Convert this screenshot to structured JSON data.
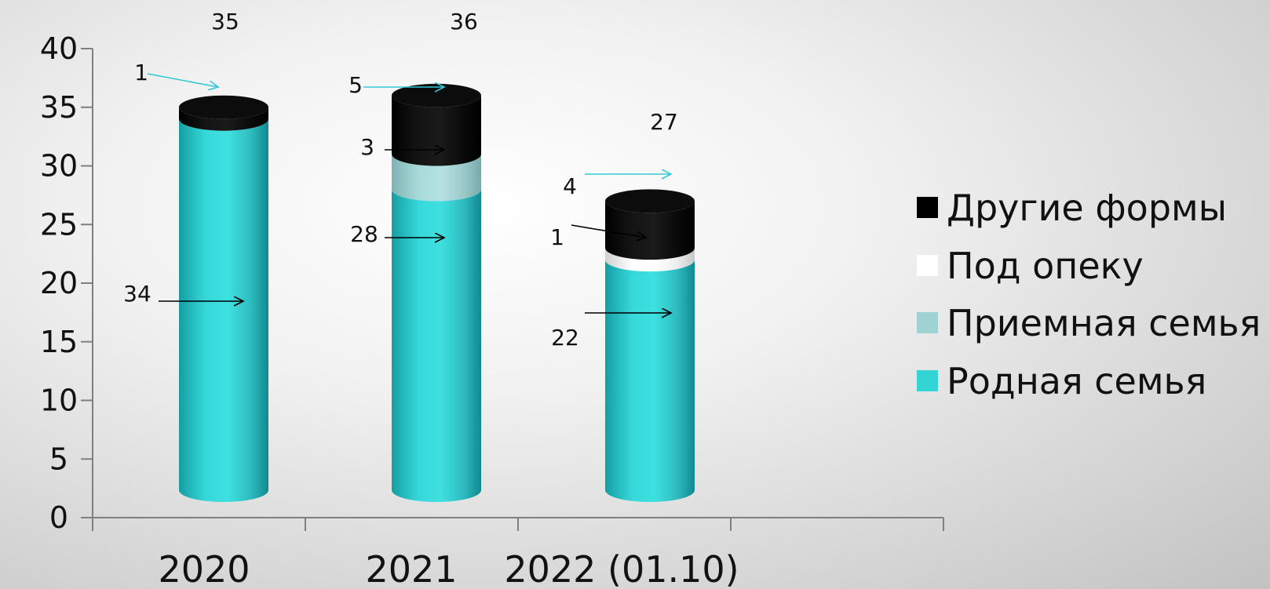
{
  "chart_data": {
    "type": "bar",
    "stacked": true,
    "style": "3d-cylinder",
    "categories": [
      "2020",
      "2021",
      "2022 (01.10)"
    ],
    "series": [
      {
        "name": "Родная семья",
        "values": [
          34,
          28,
          22
        ],
        "color": "#33d4d4"
      },
      {
        "name": "Приемная семья",
        "values": [
          0,
          3,
          0
        ],
        "color": "#9fd2d2"
      },
      {
        "name": "Под опеку",
        "values": [
          0,
          0,
          1
        ],
        "color": "#ffffff"
      },
      {
        "name": "Другие формы",
        "values": [
          1,
          5,
          4
        ],
        "color": "#000000"
      }
    ],
    "totals": [
      35,
      36,
      27
    ],
    "ylim": [
      0,
      40
    ],
    "yticks": [
      0,
      5,
      10,
      15,
      20,
      25,
      30,
      35,
      40
    ],
    "grid": false,
    "legend_position": "right",
    "legend_order": [
      "Другие формы",
      "Под опеку",
      "Приемная семья",
      "Родная семья"
    ]
  }
}
